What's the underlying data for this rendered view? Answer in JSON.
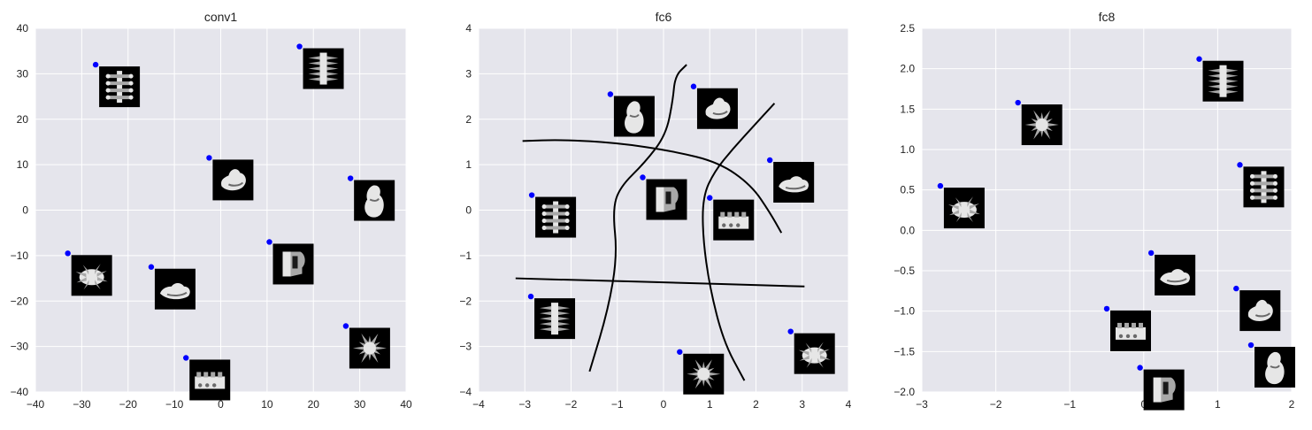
{
  "chart_data": [
    {
      "type": "scatter",
      "title": "conv1",
      "xlabel": "",
      "ylabel": "",
      "xlim": [
        -40,
        40
      ],
      "ylim": [
        -40,
        40
      ],
      "xticks": [
        -40,
        -30,
        -20,
        -10,
        0,
        10,
        20,
        30,
        40
      ],
      "yticks": [
        -40,
        -30,
        -20,
        -10,
        0,
        10,
        20,
        30,
        40
      ],
      "xtick_labels": [
        "−40",
        "−30",
        "−20",
        "−10",
        "0",
        "10",
        "20",
        "30",
        "40"
      ],
      "ytick_labels": [
        "−40",
        "−30",
        "−20",
        "−10",
        "0",
        "10",
        "20",
        "30",
        "40"
      ],
      "grid": true,
      "point_color": "#0000ff",
      "points": [
        {
          "x": -27,
          "y": 32,
          "object": "spine-ladder"
        },
        {
          "x": 17,
          "y": 36,
          "object": "spiky-column"
        },
        {
          "x": -2.5,
          "y": 11.5,
          "object": "bent-blob"
        },
        {
          "x": 28,
          "y": 7,
          "object": "tall-blob"
        },
        {
          "x": 10.5,
          "y": -7,
          "object": "hook-block"
        },
        {
          "x": -33,
          "y": -9.5,
          "object": "spiky-blob"
        },
        {
          "x": -15,
          "y": -12.5,
          "object": "flat-blob"
        },
        {
          "x": 27,
          "y": -25.5,
          "object": "star-burst"
        },
        {
          "x": -7.5,
          "y": -32.5,
          "object": "toothed-block"
        }
      ]
    },
    {
      "type": "scatter",
      "title": "fc6",
      "xlabel": "",
      "ylabel": "",
      "xlim": [
        -4,
        4
      ],
      "ylim": [
        -4,
        4
      ],
      "xticks": [
        -4,
        -3,
        -2,
        -1,
        0,
        1,
        2,
        3,
        4
      ],
      "yticks": [
        -4,
        -3,
        -2,
        -1,
        0,
        1,
        2,
        3,
        4
      ],
      "xtick_labels": [
        "−4",
        "−3",
        "−2",
        "−1",
        "0",
        "1",
        "2",
        "3",
        "4"
      ],
      "ytick_labels": [
        "−4",
        "−3",
        "−2",
        "−1",
        "0",
        "1",
        "2",
        "3",
        "4"
      ],
      "grid": true,
      "point_color": "#0000ff",
      "points": [
        {
          "x": -1.15,
          "y": 2.55,
          "object": "tall-blob"
        },
        {
          "x": 0.65,
          "y": 2.72,
          "object": "bent-blob"
        },
        {
          "x": 2.3,
          "y": 1.1,
          "object": "flat-blob"
        },
        {
          "x": -2.85,
          "y": 0.33,
          "object": "spine-ladder"
        },
        {
          "x": -0.45,
          "y": 0.72,
          "object": "hook-block"
        },
        {
          "x": 1.0,
          "y": 0.27,
          "object": "toothed-block"
        },
        {
          "x": -2.87,
          "y": -1.9,
          "object": "spiky-column"
        },
        {
          "x": 0.35,
          "y": -3.12,
          "object": "star-burst"
        },
        {
          "x": 2.75,
          "y": -2.67,
          "object": "spiky-blob"
        }
      ],
      "boundaries": [
        {
          "x": [
            0.5,
            0.25,
            0.2,
            0.05,
            -0.4,
            -0.95,
            -1.1,
            -1.0,
            -1.2,
            -1.6
          ],
          "y": [
            3.2,
            2.95,
            2.4,
            1.65,
            1.05,
            0.5,
            0.0,
            -1.0,
            -2.2,
            -3.55
          ]
        },
        {
          "x": [
            2.4,
            1.95,
            1.5,
            1.1,
            0.85,
            0.85,
            1.0,
            1.3,
            1.75
          ],
          "y": [
            2.35,
            1.85,
            1.35,
            0.85,
            0.3,
            -0.6,
            -1.7,
            -2.9,
            -3.75
          ]
        },
        {
          "x": [
            -3.05,
            -2.2,
            -1.0,
            0.2,
            1.2,
            1.9,
            2.3,
            2.55
          ],
          "y": [
            1.52,
            1.55,
            1.48,
            1.3,
            1.05,
            0.55,
            -0.05,
            -0.5
          ]
        },
        {
          "x": [
            -3.2,
            -1.5,
            0.5,
            2.0,
            3.05
          ],
          "y": [
            -1.5,
            -1.55,
            -1.6,
            -1.65,
            -1.68
          ]
        }
      ]
    },
    {
      "type": "scatter",
      "title": "fc8",
      "xlabel": "",
      "ylabel": "",
      "xlim": [
        -3,
        2
      ],
      "ylim": [
        -2.0,
        2.5
      ],
      "xticks": [
        -3,
        -2,
        -1,
        0,
        1,
        2
      ],
      "yticks": [
        -2.0,
        -1.5,
        -1.0,
        -0.5,
        0.0,
        0.5,
        1.0,
        1.5,
        2.0,
        2.5
      ],
      "xtick_labels": [
        "−3",
        "−2",
        "−1",
        "0",
        "1",
        "2"
      ],
      "ytick_labels": [
        "−2.0",
        "−1.5",
        "−1.0",
        "−0.5",
        "0.0",
        "0.5",
        "1.0",
        "1.5",
        "2.0",
        "2.5"
      ],
      "grid": true,
      "point_color": "#0000ff",
      "points": [
        {
          "x": 0.75,
          "y": 2.12,
          "object": "spiky-column"
        },
        {
          "x": -1.7,
          "y": 1.58,
          "object": "star-burst"
        },
        {
          "x": 1.3,
          "y": 0.81,
          "object": "spine-ladder"
        },
        {
          "x": -2.75,
          "y": 0.55,
          "object": "spiky-blob"
        },
        {
          "x": 0.1,
          "y": -0.28,
          "object": "flat-blob"
        },
        {
          "x": 1.25,
          "y": -0.72,
          "object": "bent-blob"
        },
        {
          "x": -0.5,
          "y": -0.97,
          "object": "toothed-block"
        },
        {
          "x": 1.45,
          "y": -1.42,
          "object": "tall-blob"
        },
        {
          "x": -0.05,
          "y": -1.7,
          "object": "hook-block"
        }
      ]
    }
  ]
}
